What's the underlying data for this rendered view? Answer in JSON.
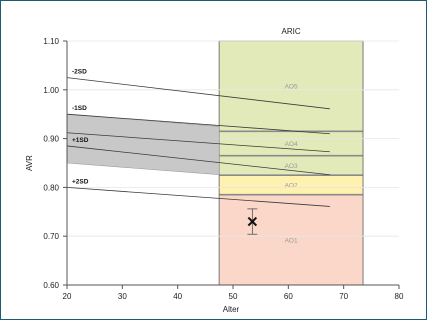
{
  "chart_data": {
    "type": "line",
    "xlabel": "Alter",
    "ylabel": "AVR",
    "xlim": [
      20,
      80
    ],
    "ylim": [
      0.6,
      1.1
    ],
    "x_ticks": [
      20,
      30,
      40,
      50,
      60,
      70,
      80
    ],
    "y_ticks": [
      0.6,
      0.7,
      0.8,
      0.9,
      1.0,
      1.1
    ],
    "x_tick_labels": [
      "20",
      "30",
      "40",
      "50",
      "60",
      "70",
      "80"
    ],
    "y_tick_labels": [
      "0.60",
      "0.70",
      "0.80",
      "0.90",
      "1.00",
      "1.10"
    ],
    "grid": "horizontal",
    "sd_lines": [
      {
        "label": "-2SD",
        "x": [
          20,
          67.5
        ],
        "y": [
          1.025,
          0.961
        ]
      },
      {
        "label": "-1SD",
        "x": [
          20,
          67.5
        ],
        "y": [
          0.95,
          0.91
        ]
      },
      {
        "label": "",
        "x": [
          20,
          67.5
        ],
        "y": [
          0.912,
          0.873
        ]
      },
      {
        "label": "+1SD",
        "x": [
          20,
          67.5
        ],
        "y": [
          0.885,
          0.826
        ]
      },
      {
        "label": "+2SD",
        "x": [
          20,
          67.5
        ],
        "y": [
          0.8,
          0.761
        ]
      }
    ],
    "shaded_band": {
      "x": [
        20,
        47.5
      ],
      "upper": [
        0.95,
        0.925
      ],
      "lower": [
        0.85,
        0.826
      ],
      "color": "#c8c8c8"
    },
    "aric": {
      "title": "ARIC",
      "x_range": [
        47.5,
        73.5
      ],
      "zones": [
        {
          "label": "AO5",
          "ymin": 0.915,
          "ymax": 1.1,
          "color": "#e1eab8"
        },
        {
          "label": "AO4",
          "ymin": 0.865,
          "ymax": 0.915,
          "color": "#e1eab8"
        },
        {
          "label": "AO3",
          "ymin": 0.825,
          "ymax": 0.865,
          "color": "#e1eab8"
        },
        {
          "label": "AO2",
          "ymin": 0.785,
          "ymax": 0.825,
          "color": "#fff1b0"
        },
        {
          "label": "AO1",
          "ymin": 0.6,
          "ymax": 0.785,
          "color": "#fad7c8"
        }
      ]
    },
    "patient_point": {
      "x": 53.5,
      "y": 0.73,
      "error_low": 0.704,
      "error_high": 0.756
    }
  }
}
